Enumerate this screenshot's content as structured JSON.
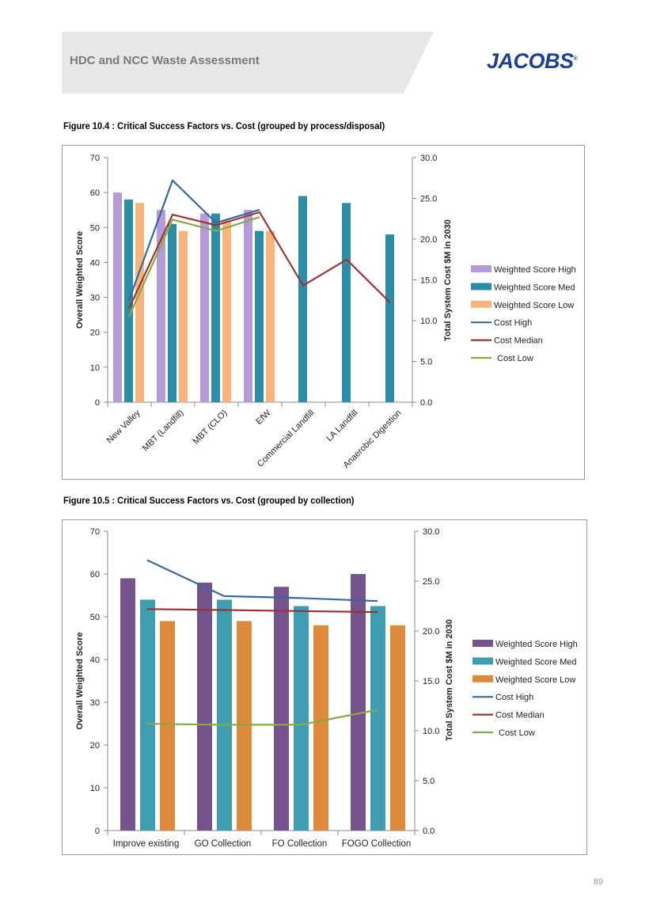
{
  "header": {
    "title": "HDC and NCC Waste Assessment",
    "logo_text": "JACOBS",
    "logo_mark": "®"
  },
  "figures": [
    {
      "caption": "Figure 10.4 : Critical Success Factors vs. Cost (grouped by process/disposal)"
    },
    {
      "caption": "Figure 10.5 : Critical Success Factors vs. Cost (grouped by collection)"
    }
  ],
  "page_number": "89",
  "colors": {
    "score_high_1": "#b59ad8",
    "score_med_1": "#2b8ea6",
    "score_low_1": "#f9b47c",
    "score_high_2": "#75548e",
    "score_med_2": "#3f9db2",
    "score_low_2": "#dd8a3c",
    "cost_high": "#3867a2",
    "cost_median": "#9a3434",
    "cost_low": "#88a845"
  },
  "chart_data": [
    {
      "type": "bar",
      "title": "Critical Success Factors vs. Cost (grouped by process/disposal)",
      "ylabel": "Overall Weighted Score",
      "y2label": "Total System Cost $M in 2030",
      "ylim": [
        0,
        70
      ],
      "y2lim": [
        0,
        30
      ],
      "yticks": [
        "0",
        "10",
        "20",
        "30",
        "40",
        "50",
        "60",
        "70"
      ],
      "y2ticks": [
        "0.0",
        "5.0",
        "10.0",
        "15.0",
        "20.0",
        "25.0",
        "30.0"
      ],
      "categories": [
        "New Valley",
        "MBT (Landfill)",
        "MBT (CLO)",
        "EfW",
        "Commercial Landfill",
        "LA Landfill",
        "Anaerobic Digestion"
      ],
      "bar_series": [
        {
          "name": "Weighted Score High",
          "values": [
            60,
            55,
            54,
            55,
            null,
            null,
            null
          ]
        },
        {
          "name": "Weighted Score Med",
          "values": [
            58,
            51,
            54,
            49,
            59,
            57,
            48
          ]
        },
        {
          "name": "Weighted Score Low",
          "values": [
            57,
            49,
            52,
            49,
            null,
            null,
            null
          ]
        }
      ],
      "line_series": [
        {
          "name": "Cost High",
          "values": [
            12.5,
            27.2,
            22.0,
            23.6,
            null,
            null,
            null
          ]
        },
        {
          "name": "Cost Median",
          "values": [
            11.5,
            23.0,
            21.7,
            23.3,
            14.3,
            17.5,
            12.2
          ]
        },
        {
          "name": "Cost Low",
          "values": [
            10.5,
            22.4,
            21.0,
            22.7,
            null,
            null,
            null
          ]
        }
      ],
      "legend": [
        "Weighted Score High",
        "Weighted Score Med",
        "Weighted Score Low",
        "Cost High",
        "Cost Median",
        "Cost Low"
      ],
      "legend_position": "right"
    },
    {
      "type": "bar",
      "title": "Critical Success Factors vs. Cost (grouped by collection)",
      "ylabel": "Overall Weighted Score",
      "y2label": "Total System Cost $M in 2030",
      "ylim": [
        0,
        70
      ],
      "y2lim": [
        0,
        30
      ],
      "yticks": [
        "0",
        "10",
        "20",
        "30",
        "40",
        "50",
        "60",
        "70"
      ],
      "y2ticks": [
        "0.0",
        "5.0",
        "10.0",
        "15.0",
        "20.0",
        "25.0",
        "30.0"
      ],
      "categories": [
        "Improve existing",
        "GO Collection",
        "FO Collection",
        "FOGO Collection"
      ],
      "bar_series": [
        {
          "name": "Weighted Score High",
          "values": [
            59,
            58,
            57,
            60
          ]
        },
        {
          "name": "Weighted Score Med",
          "values": [
            54,
            54,
            52.5,
            52.5
          ]
        },
        {
          "name": "Weighted Score Low",
          "values": [
            49,
            49,
            48,
            48
          ]
        }
      ],
      "line_series": [
        {
          "name": "Cost High",
          "values": [
            27.1,
            23.5,
            23.3,
            23.0
          ]
        },
        {
          "name": "Cost Median",
          "values": [
            22.2,
            22.1,
            22.0,
            21.9
          ]
        },
        {
          "name": "Cost Low",
          "values": [
            10.7,
            10.6,
            10.6,
            12.1
          ]
        }
      ],
      "legend": [
        "Weighted Score High",
        "Weighted Score Med",
        "Weighted Score Low",
        "Cost High",
        "Cost Median",
        "Cost Low"
      ],
      "legend_position": "right"
    }
  ]
}
